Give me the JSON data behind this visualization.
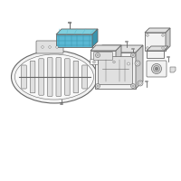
{
  "bg_color": "#ffffff",
  "line_color": "#666666",
  "highlight_color": "#5ab8d4",
  "fill_light": "#f2f2f2",
  "fill_med": "#e0e0e0",
  "fill_dark": "#cccccc",
  "shadow": "#b0b0b0"
}
